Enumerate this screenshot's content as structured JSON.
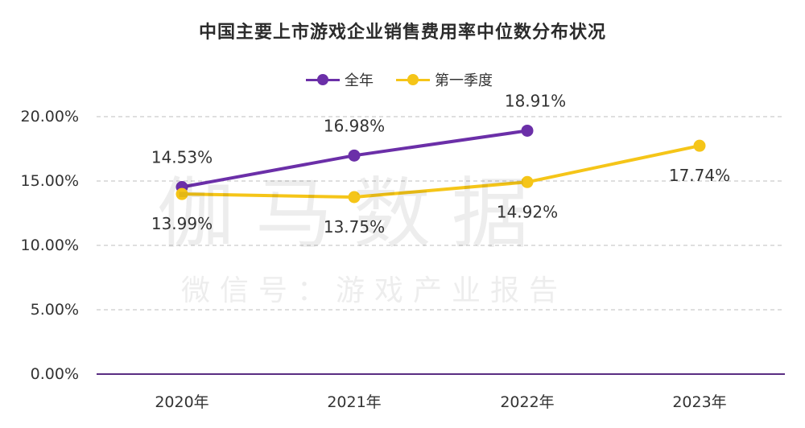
{
  "chart_data": {
    "type": "line",
    "title": "中国主要上市游戏企业销售费用率中位数分布状况",
    "categories": [
      "2020年",
      "2021年",
      "2022年",
      "2023年"
    ],
    "series": [
      {
        "name": "全年",
        "color": "#6b2fa8",
        "values": [
          14.53,
          16.98,
          18.91,
          null
        ],
        "labels": [
          "14.53%",
          "16.98%",
          "18.91%",
          null
        ]
      },
      {
        "name": "第一季度",
        "color": "#f5c518",
        "values": [
          13.99,
          13.75,
          14.92,
          17.74
        ],
        "labels": [
          "13.99%",
          "13.75%",
          "14.92%",
          "17.74%"
        ]
      }
    ],
    "y_ticks": [
      "0.00%",
      "5.00%",
      "10.00%",
      "15.00%",
      "20.00%"
    ],
    "ylim": [
      0,
      20
    ],
    "grid": true,
    "legend_position": "top-center",
    "axis_color": "#5a2d82",
    "grid_color": "#cccccc"
  },
  "watermark": {
    "main": "伽马数据",
    "sub": "微信号：游戏产业报告"
  }
}
